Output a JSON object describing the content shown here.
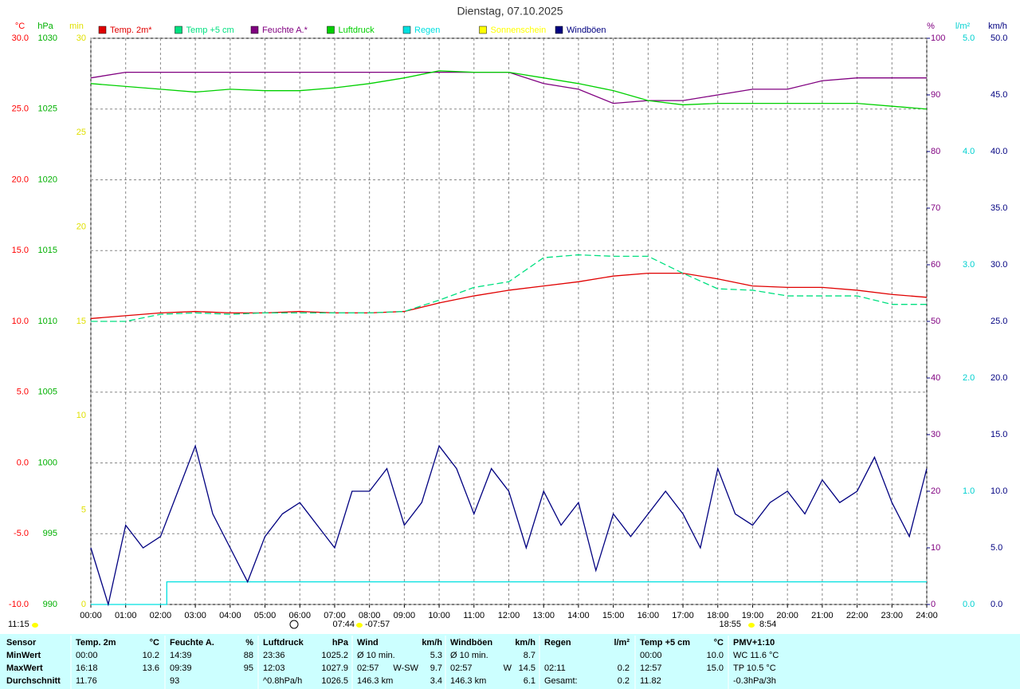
{
  "chart_data": {
    "type": "line",
    "title": "Dienstag, 07.10.2025",
    "xlim": [
      0,
      24
    ],
    "xticks": [
      {
        "value": 0,
        "label": "00:00"
      },
      {
        "value": 1,
        "label": "01:00"
      },
      {
        "value": 2,
        "label": "02:00"
      },
      {
        "value": 3,
        "label": "03:00"
      },
      {
        "value": 4,
        "label": "04:00"
      },
      {
        "value": 5,
        "label": "05:00"
      },
      {
        "value": 6,
        "label": "06:00"
      },
      {
        "value": 7,
        "label": "07:00"
      },
      {
        "value": 8,
        "label": "08:00"
      },
      {
        "value": 9,
        "label": "09:00"
      },
      {
        "value": 10,
        "label": "10:00"
      },
      {
        "value": 11,
        "label": "11:00"
      },
      {
        "value": 12,
        "label": "12:00"
      },
      {
        "value": 13,
        "label": "13:00"
      },
      {
        "value": 14,
        "label": "14:00"
      },
      {
        "value": 15,
        "label": "15:00"
      },
      {
        "value": 16,
        "label": "16:00"
      },
      {
        "value": 17,
        "label": "17:00"
      },
      {
        "value": 18,
        "label": "18:00"
      },
      {
        "value": 19,
        "label": "19:00"
      },
      {
        "value": 20,
        "label": "20:00"
      },
      {
        "value": 21,
        "label": "21:00"
      },
      {
        "value": 22,
        "label": "22:00"
      },
      {
        "value": 23,
        "label": "23:00"
      },
      {
        "value": 24,
        "label": "24:00"
      }
    ],
    "grid": true,
    "axes": [
      {
        "label": "°C",
        "color": "#ff0000",
        "ylim": [
          -10,
          30
        ],
        "yticks": [
          {
            "value": -10,
            "label": "-10.0"
          },
          {
            "value": -5,
            "label": "-5.0"
          },
          {
            "value": 0,
            "label": "0.0"
          },
          {
            "value": 5,
            "label": "5.0"
          },
          {
            "value": 10,
            "label": "10.0"
          },
          {
            "value": 15,
            "label": "15.0"
          },
          {
            "value": 20,
            "label": "20.0"
          },
          {
            "value": 25,
            "label": "25.0"
          },
          {
            "value": 30,
            "label": "30.0"
          }
        ]
      },
      {
        "label": "hPa",
        "color": "#00b000",
        "ylim": [
          990,
          1030
        ],
        "yticks": [
          990,
          995,
          1000,
          1005,
          1010,
          1015,
          1020,
          1025,
          1030
        ]
      },
      {
        "label": "min",
        "color": "#e0e000",
        "ylim": [
          0,
          30
        ],
        "yticks": [
          0,
          5,
          10,
          15,
          20,
          25,
          30
        ]
      },
      {
        "label": "%",
        "color": "#800080",
        "ylim": [
          0,
          100
        ],
        "yticks": [
          0,
          10,
          20,
          30,
          40,
          50,
          60,
          70,
          80,
          90,
          100
        ]
      },
      {
        "label": "l/m²",
        "color": "#00d0d0",
        "ylim": [
          0,
          5
        ],
        "yticks": [
          {
            "value": 0,
            "label": "0.0"
          },
          {
            "value": 1,
            "label": "1.0"
          },
          {
            "value": 2,
            "label": "2.0"
          },
          {
            "value": 3,
            "label": "3.0"
          },
          {
            "value": 4,
            "label": "4.0"
          },
          {
            "value": 5,
            "label": "5.0"
          }
        ]
      },
      {
        "label": "km/h",
        "color": "#000080",
        "ylim": [
          0,
          50
        ],
        "yticks": [
          {
            "value": 0,
            "label": "0.0"
          },
          {
            "value": 5,
            "label": "5.0"
          },
          {
            "value": 10,
            "label": "10.0"
          },
          {
            "value": 15,
            "label": "15.0"
          },
          {
            "value": 20,
            "label": "20.0"
          },
          {
            "value": 25,
            "label": "25.0"
          },
          {
            "value": 30,
            "label": "30.0"
          },
          {
            "value": 35,
            "label": "35.0"
          },
          {
            "value": 40,
            "label": "40.0"
          },
          {
            "value": 45,
            "label": "45.0"
          },
          {
            "value": 50,
            "label": "50.0"
          }
        ]
      }
    ],
    "series": [
      {
        "name": "Temp. 2m*",
        "color": "#e00000",
        "axis": "°C",
        "x": [
          0,
          1,
          2,
          3,
          4,
          5,
          6,
          7,
          8,
          9,
          10,
          11,
          12,
          13,
          14,
          15,
          16,
          17,
          18,
          19,
          20,
          21,
          22,
          23,
          24
        ],
        "values": [
          10.2,
          10.4,
          10.6,
          10.7,
          10.6,
          10.6,
          10.7,
          10.6,
          10.6,
          10.7,
          11.3,
          11.8,
          12.2,
          12.5,
          12.8,
          13.2,
          13.4,
          13.4,
          13.0,
          12.5,
          12.4,
          12.4,
          12.2,
          11.9,
          11.7
        ]
      },
      {
        "name": "Temp +5 cm",
        "color": "#00e080",
        "axis": "°C",
        "dash": true,
        "x": [
          0,
          1,
          2,
          3,
          4,
          5,
          6,
          7,
          8,
          9,
          10,
          11,
          12,
          13,
          14,
          15,
          16,
          17,
          18,
          19,
          20,
          21,
          22,
          23,
          24
        ],
        "values": [
          10.0,
          10.0,
          10.5,
          10.6,
          10.5,
          10.6,
          10.6,
          10.6,
          10.6,
          10.7,
          11.5,
          12.4,
          12.8,
          14.5,
          14.7,
          14.6,
          14.6,
          13.4,
          12.3,
          12.2,
          11.8,
          11.8,
          11.8,
          11.2,
          11.2
        ]
      },
      {
        "name": "Feuchte A.*",
        "color": "#800080",
        "axis": "%",
        "x": [
          0,
          1,
          2,
          3,
          4,
          5,
          6,
          7,
          8,
          9,
          10,
          11,
          12,
          13,
          14,
          15,
          16,
          17,
          18,
          19,
          20,
          21,
          22,
          23,
          24
        ],
        "values": [
          93,
          94,
          94,
          94,
          94,
          94,
          94,
          94,
          94,
          94,
          94,
          94,
          94,
          92,
          91,
          88.5,
          89,
          89,
          90,
          91,
          91,
          92.5,
          93,
          93,
          93
        ]
      },
      {
        "name": "Luftdruck",
        "color": "#00d000",
        "axis": "hPa",
        "x": [
          0,
          1,
          2,
          3,
          4,
          5,
          6,
          7,
          8,
          9,
          10,
          11,
          12,
          13,
          14,
          15,
          16,
          17,
          18,
          19,
          20,
          21,
          22,
          23,
          24
        ],
        "values": [
          1026.8,
          1026.6,
          1026.4,
          1026.2,
          1026.4,
          1026.3,
          1026.3,
          1026.5,
          1026.8,
          1027.2,
          1027.7,
          1027.6,
          1027.6,
          1027.2,
          1026.8,
          1026.3,
          1025.6,
          1025.3,
          1025.4,
          1025.4,
          1025.4,
          1025.4,
          1025.4,
          1025.2,
          1025.0
        ]
      },
      {
        "name": "Regen",
        "color": "#00e0e0",
        "axis": "l/m²",
        "x": [
          0,
          2.18,
          2.18,
          24
        ],
        "values": [
          0,
          0,
          0.2,
          0.2
        ]
      },
      {
        "name": "Sonnenschein",
        "color": "#ffff00",
        "axis": "min"
      },
      {
        "name": "Windböen",
        "color": "#000080",
        "axis": "km/h",
        "x": [
          0,
          0.5,
          1,
          1.5,
          2,
          2.5,
          3,
          3.5,
          4,
          4.5,
          5,
          5.5,
          6,
          6.5,
          7,
          7.5,
          8,
          8.5,
          9,
          9.5,
          10,
          10.5,
          11,
          11.5,
          12,
          12.5,
          13,
          13.5,
          14,
          14.5,
          15,
          15.5,
          16,
          16.5,
          17,
          17.5,
          18,
          18.5,
          19,
          19.5,
          20,
          20.5,
          21,
          21.5,
          22,
          22.5,
          23,
          23.5,
          24
        ],
        "values": [
          5,
          0,
          7,
          5,
          6,
          10,
          14,
          8,
          5,
          2,
          6,
          8,
          9,
          7,
          5,
          10,
          10,
          12,
          7,
          9,
          14,
          12,
          8,
          12,
          10,
          5,
          10,
          7,
          9,
          3,
          8,
          6,
          8,
          10,
          8,
          5,
          12,
          8,
          7,
          9,
          10,
          8,
          11,
          9,
          10,
          13,
          9,
          6,
          12
        ]
      }
    ],
    "annotations": [
      "11:15",
      "07:44",
      "-07:57",
      "18:55",
      "8:54"
    ]
  },
  "table": {
    "header": [
      "Sensor",
      [
        "Temp. 2m",
        "°C"
      ],
      [
        "Feuchte A.",
        "%"
      ],
      [
        "Luftdruck",
        "hPa"
      ],
      [
        "Wind",
        "km/h"
      ],
      [
        "Windböen",
        "km/h"
      ],
      [
        "Regen",
        "l/m²"
      ],
      [
        "Temp +5 cm",
        "°C"
      ],
      [
        "PMV+1:10"
      ]
    ],
    "rows": [
      [
        "MinWert",
        [
          "00:00",
          "10.2"
        ],
        [
          "14:39",
          "88"
        ],
        [
          "23:36",
          "1025.2"
        ],
        [
          "Ø 10 min.",
          "5.3"
        ],
        [
          "Ø 10 min.",
          "8.7"
        ],
        [],
        [
          "00:00",
          "10.0"
        ],
        [
          "WC 11.6 °C"
        ]
      ],
      [
        "MaxWert",
        [
          "16:18",
          "13.6"
        ],
        [
          "09:39",
          "95"
        ],
        [
          "12:03",
          "1027.9"
        ],
        [
          "02:57",
          "W-SW",
          "9.7"
        ],
        [
          "02:57",
          "W",
          "14.5"
        ],
        [
          "02:11",
          "0.2"
        ],
        [
          "12:57",
          "15.0"
        ],
        [
          "TP 10.5 °C"
        ]
      ],
      [
        "Durchschnitt",
        [
          "11.76"
        ],
        [
          "93"
        ],
        [
          "^0.8hPa/h",
          "1026.5"
        ],
        [
          "146.3 km",
          "3.4"
        ],
        [
          "146.3 km",
          "6.1"
        ],
        [
          "Gesamt:",
          "0.2"
        ],
        [
          "11.82"
        ],
        [
          "-0.3hPa/3h"
        ]
      ]
    ]
  }
}
